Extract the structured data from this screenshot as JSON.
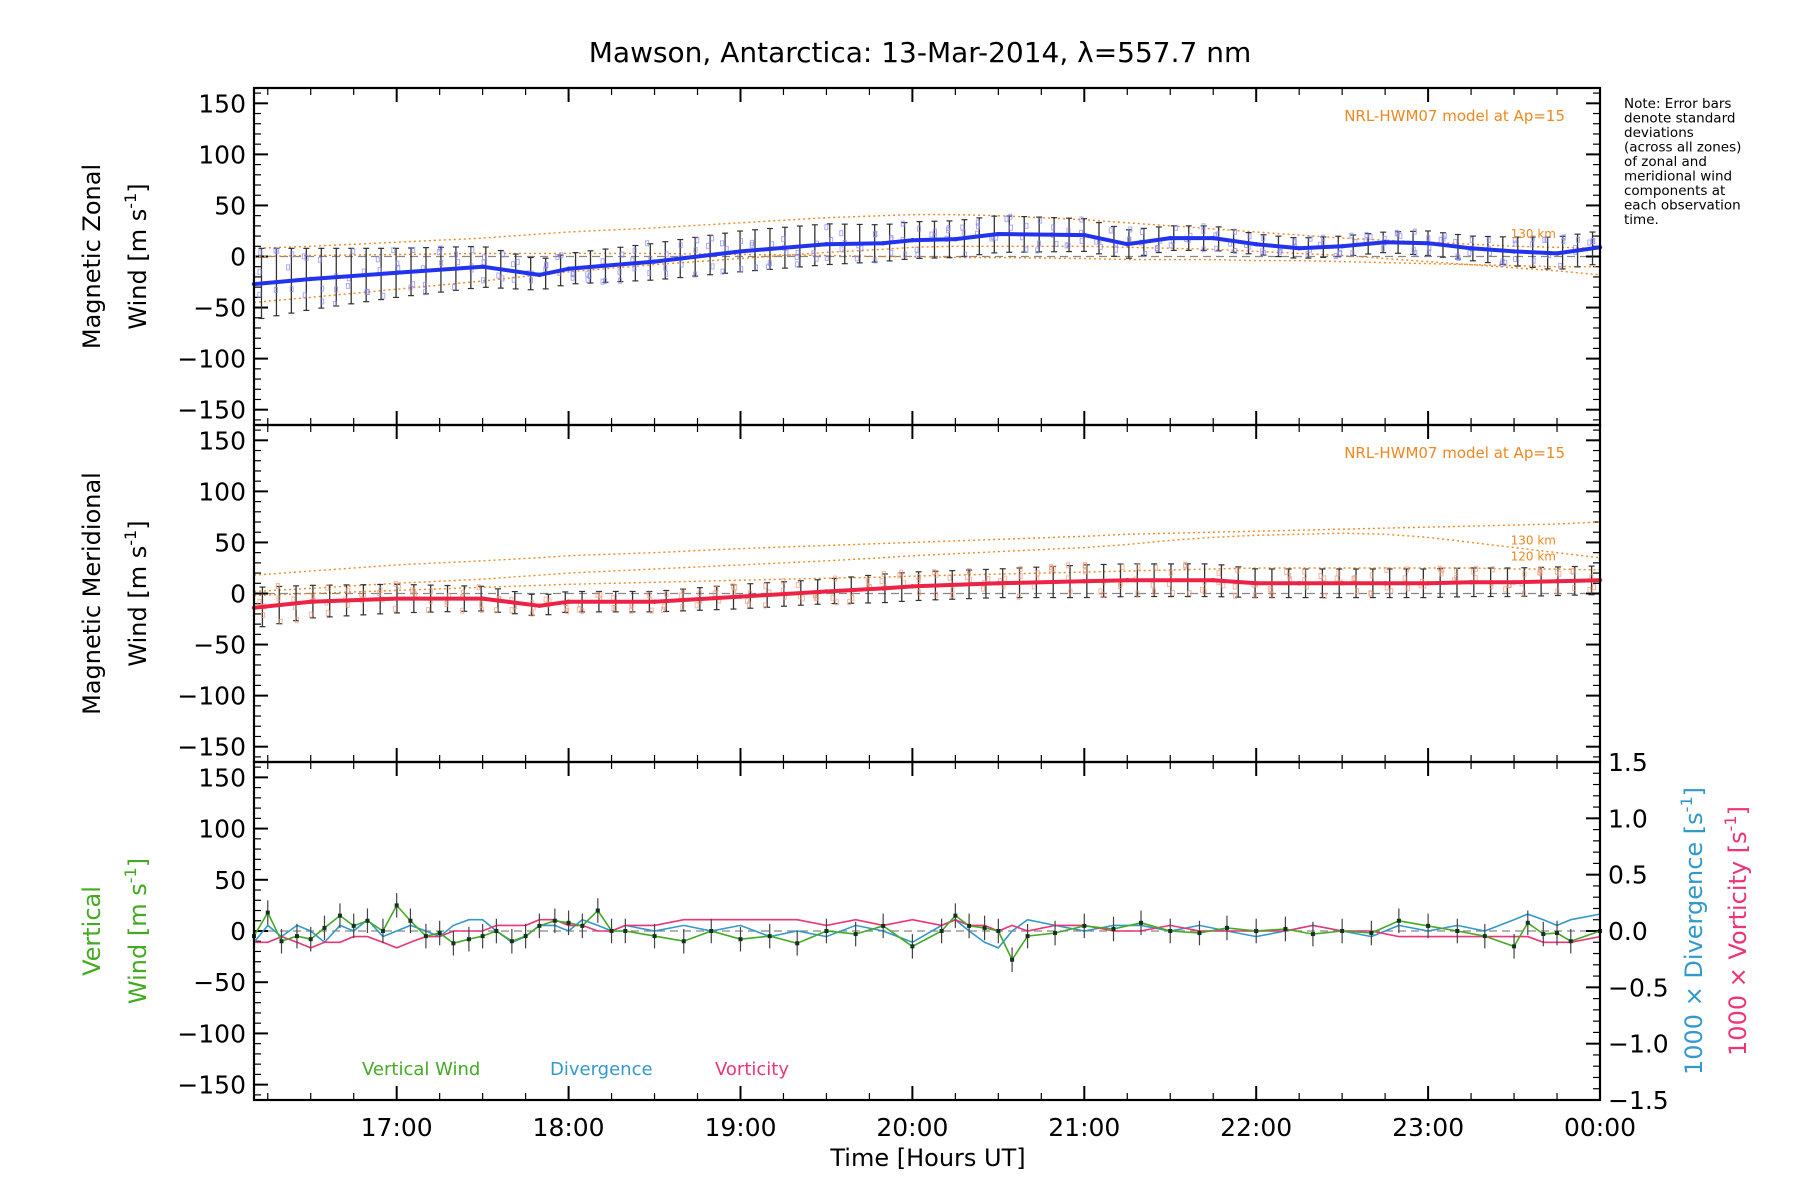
{
  "title": "Mawson, Antarctica: 13-Mar-2014, λ=557.7 nm",
  "xlabel": "Time [Hours UT]",
  "xticks": [
    "17:00",
    "18:00",
    "19:00",
    "20:00",
    "21:00",
    "22:00",
    "23:00",
    "00:00"
  ],
  "note": [
    "Note: Error bars",
    "denote standard",
    "deviations",
    "(across all zones)",
    "of zonal and",
    "meridional wind",
    "components at",
    "each observation",
    "time."
  ],
  "colors": {
    "zonal": "#2233ee",
    "meridional": "#ee2244",
    "vertical": "#44aa22",
    "divergence": "#3399cc",
    "vorticity": "#ee3377",
    "model": "#ee8822",
    "zones": "#8888ee",
    "zones_merid": "#ee9977",
    "zero": "#888888"
  },
  "chart_data": [
    {
      "type": "line",
      "panel": "zonal",
      "ylabel_line1": "Magnetic Zonal",
      "ylabel_line2": "Wind [m s",
      "ylabel_sup": "-1",
      "ylabel_close": "]",
      "yticks": [
        "150",
        "100",
        "50",
        "0",
        "−50",
        "−100",
        "−150"
      ],
      "ylim": [
        -165,
        165
      ],
      "xlim": [
        16.17,
        24.0
      ],
      "model_label": "NRL-HWM07 model at Ap=15",
      "model_alt_labels": [
        "130 km"
      ],
      "x": [
        16.17,
        16.5,
        17.0,
        17.5,
        17.83,
        18.0,
        18.5,
        19.0,
        19.5,
        19.83,
        20.0,
        20.25,
        20.5,
        21.0,
        21.25,
        21.5,
        21.75,
        22.0,
        22.25,
        22.5,
        22.75,
        23.0,
        23.25,
        23.5,
        23.75,
        24.0
      ],
      "series": [
        {
          "name": "Zonal wind",
          "values": [
            -27,
            -22,
            -16,
            -10,
            -18,
            -12,
            -5,
            5,
            12,
            13,
            16,
            17,
            22,
            21,
            12,
            18,
            18,
            12,
            8,
            10,
            14,
            13,
            8,
            5,
            3,
            9
          ]
        },
        {
          "name": "Zonal stdev",
          "values": [
            35,
            30,
            24,
            20,
            15,
            15,
            18,
            20,
            20,
            18,
            18,
            18,
            18,
            16,
            14,
            12,
            12,
            10,
            10,
            10,
            10,
            12,
            12,
            14,
            16,
            16
          ]
        },
        {
          "name": "HWM07 130 km",
          "values": [
            8,
            10,
            14,
            18,
            22,
            24,
            28,
            33,
            38,
            40,
            41,
            41,
            40,
            36,
            33,
            30,
            27,
            24,
            21,
            18,
            16,
            14,
            12,
            10,
            9,
            8
          ]
        },
        {
          "name": "HWM07 120 km",
          "values": [
            -45,
            -40,
            -32,
            -24,
            -18,
            -15,
            -8,
            -2,
            4,
            7,
            9,
            10,
            10,
            10,
            9,
            8,
            7,
            5,
            3,
            1,
            -2,
            -5,
            -8,
            -11,
            -14,
            -18
          ]
        },
        {
          "name": "HWM07 lower",
          "values": [
            0,
            1,
            2,
            3,
            3,
            3,
            3,
            2,
            1,
            0,
            0,
            -1,
            -1,
            -2,
            -3,
            -3,
            -3,
            -4,
            -4,
            -5,
            -6,
            -7,
            -8,
            -9,
            -10,
            -10
          ]
        }
      ]
    },
    {
      "type": "line",
      "panel": "meridional",
      "ylabel_line1": "Magnetic Meridional",
      "ylabel_line2": "Wind [m s",
      "ylabel_sup": "-1",
      "ylabel_close": "]",
      "yticks": [
        "150",
        "100",
        "50",
        "0",
        "−50",
        "−100",
        "−150"
      ],
      "ylim": [
        -165,
        165
      ],
      "xlim": [
        16.17,
        24.0
      ],
      "model_label": "NRL-HWM07 model at Ap=15",
      "model_alt_labels": [
        "130 km",
        "120 km"
      ],
      "x": [
        16.17,
        16.5,
        17.0,
        17.5,
        17.83,
        18.0,
        18.5,
        19.0,
        19.5,
        19.83,
        20.0,
        20.5,
        21.0,
        21.25,
        21.5,
        21.75,
        22.0,
        22.25,
        22.5,
        22.75,
        23.0,
        23.25,
        23.5,
        23.75,
        24.0
      ],
      "series": [
        {
          "name": "Meridional wind",
          "values": [
            -14,
            -8,
            -5,
            -5,
            -12,
            -8,
            -8,
            -3,
            2,
            5,
            7,
            10,
            12,
            13,
            13,
            13,
            10,
            10,
            10,
            10,
            10,
            11,
            11,
            12,
            13
          ]
        },
        {
          "name": "Meridional stdev",
          "values": [
            20,
            16,
            14,
            12,
            10,
            10,
            10,
            12,
            12,
            14,
            14,
            14,
            16,
            16,
            16,
            16,
            14,
            14,
            14,
            14,
            14,
            14,
            14,
            14,
            14
          ]
        },
        {
          "name": "HWM07 upper",
          "values": [
            18,
            22,
            28,
            32,
            35,
            37,
            40,
            44,
            47,
            49,
            50,
            53,
            56,
            58,
            59,
            60,
            61,
            62,
            63,
            64,
            65,
            66,
            67,
            68,
            70
          ]
        },
        {
          "name": "HWM07 130 km",
          "values": [
            2,
            5,
            10,
            14,
            18,
            20,
            24,
            28,
            32,
            35,
            37,
            41,
            45,
            48,
            52,
            55,
            57,
            58,
            59,
            58,
            55,
            50,
            45,
            40,
            35
          ]
        },
        {
          "name": "HWM07 120 km",
          "values": [
            -2,
            0,
            3,
            6,
            8,
            9,
            11,
            13,
            15,
            16,
            17,
            19,
            21,
            22,
            23,
            24,
            25,
            25,
            25,
            25,
            25,
            25,
            24,
            24,
            23
          ]
        }
      ]
    },
    {
      "type": "line",
      "panel": "vertical",
      "ylabel_line1": "Vertical",
      "ylabel_line2": "Wind [m s",
      "ylabel_sup": "-1",
      "ylabel_close": "]",
      "yticks": [
        "150",
        "100",
        "50",
        "0",
        "−50",
        "−100",
        "−150"
      ],
      "ylim": [
        -165,
        165
      ],
      "xlim": [
        16.17,
        24.0
      ],
      "y2ticks": [
        "1.5",
        "1.0",
        "0.5",
        "0.0",
        "−0.5",
        "−1.0",
        "−1.5"
      ],
      "y2lim": [
        -1.5,
        1.5
      ],
      "y2label_div": "1000 × Divergence [s",
      "y2label_vor": "1000 × Vorticity [s",
      "y2label_sup": "-1",
      "y2label_close": "]",
      "legend": [
        "Vertical Wind",
        "Divergence",
        "Vorticity"
      ],
      "x": [
        16.17,
        16.25,
        16.33,
        16.42,
        16.5,
        16.58,
        16.67,
        16.75,
        16.83,
        16.92,
        17.0,
        17.08,
        17.17,
        17.25,
        17.33,
        17.42,
        17.5,
        17.58,
        17.67,
        17.75,
        17.83,
        17.92,
        18.0,
        18.08,
        18.17,
        18.25,
        18.33,
        18.5,
        18.67,
        18.83,
        19.0,
        19.17,
        19.33,
        19.5,
        19.67,
        19.83,
        20.0,
        20.17,
        20.25,
        20.33,
        20.42,
        20.5,
        20.58,
        20.67,
        20.83,
        21.0,
        21.17,
        21.33,
        21.5,
        21.67,
        21.83,
        22.0,
        22.17,
        22.33,
        22.5,
        22.67,
        22.83,
        23.0,
        23.17,
        23.33,
        23.5,
        23.58,
        23.67,
        23.75,
        23.83,
        24.0
      ],
      "series": [
        {
          "name": "Vertical Wind",
          "values": [
            -5,
            18,
            -10,
            -5,
            -8,
            3,
            15,
            5,
            10,
            0,
            25,
            10,
            -5,
            -2,
            -12,
            -8,
            -5,
            0,
            -10,
            -5,
            5,
            10,
            8,
            5,
            20,
            0,
            0,
            -5,
            -10,
            0,
            -8,
            -5,
            -12,
            0,
            -3,
            5,
            -15,
            0,
            15,
            5,
            3,
            0,
            -28,
            -5,
            -2,
            5,
            2,
            8,
            0,
            -2,
            3,
            0,
            2,
            -3,
            0,
            -2,
            10,
            5,
            0,
            -5,
            -15,
            8,
            -3,
            -2,
            -10,
            0
          ]
        },
        {
          "name": "Divergence",
          "values": [
            -0.1,
            0.05,
            -0.05,
            0.05,
            0.0,
            -0.1,
            0.05,
            0.0,
            0.1,
            -0.05,
            0.0,
            0.05,
            0.0,
            -0.05,
            0.05,
            0.1,
            0.1,
            0.0,
            -0.1,
            -0.05,
            0.05,
            0.05,
            0.0,
            0.1,
            0.05,
            0.0,
            0.05,
            0.0,
            0.05,
            0.0,
            0.05,
            -0.05,
            0.0,
            -0.05,
            0.05,
            0.0,
            -0.1,
            0.05,
            0.1,
            0.0,
            -0.1,
            -0.15,
            0.0,
            0.1,
            0.05,
            0.0,
            0.05,
            0.05,
            0.0,
            0.05,
            0.0,
            -0.05,
            0.0,
            0.05,
            0.0,
            -0.05,
            0.05,
            0.0,
            0.05,
            0.0,
            0.1,
            0.15,
            0.1,
            0.05,
            0.1,
            0.15
          ]
        },
        {
          "name": "Vorticity",
          "values": [
            -0.1,
            -0.1,
            -0.05,
            -0.1,
            -0.15,
            -0.1,
            -0.1,
            -0.05,
            -0.05,
            -0.1,
            -0.15,
            -0.1,
            -0.05,
            -0.05,
            0.0,
            0.0,
            0.0,
            0.05,
            0.05,
            0.05,
            0.1,
            0.1,
            0.05,
            0.05,
            0.0,
            0.0,
            0.05,
            0.05,
            0.1,
            0.1,
            0.1,
            0.1,
            0.1,
            0.05,
            0.1,
            0.05,
            0.1,
            0.05,
            0.1,
            0.05,
            0.05,
            0.0,
            0.05,
            0.0,
            0.05,
            0.05,
            0.0,
            0.0,
            0.05,
            0.0,
            0.0,
            0.0,
            0.0,
            0.05,
            0.0,
            0.0,
            -0.05,
            -0.05,
            -0.05,
            -0.05,
            -0.05,
            -0.05,
            -0.1,
            -0.1,
            -0.1,
            -0.05
          ]
        }
      ]
    }
  ]
}
